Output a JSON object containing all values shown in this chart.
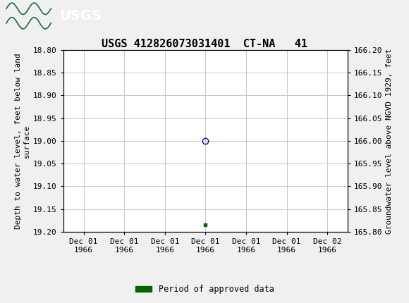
{
  "title": "USGS 412826073031401  CT-NA   41",
  "xlabel_ticks": [
    "Dec 01\n1966",
    "Dec 01\n1966",
    "Dec 01\n1966",
    "Dec 01\n1966",
    "Dec 01\n1966",
    "Dec 01\n1966",
    "Dec 02\n1966"
  ],
  "ylabel_left": "Depth to water level, feet below land\nsurface",
  "ylabel_right": "Groundwater level above NGVD 1929, feet",
  "ylim_left": [
    18.8,
    19.2
  ],
  "ylim_right": [
    165.8,
    166.2
  ],
  "yticks_left": [
    18.8,
    18.85,
    18.9,
    18.95,
    19.0,
    19.05,
    19.1,
    19.15,
    19.2
  ],
  "yticks_right": [
    165.8,
    165.85,
    165.9,
    165.95,
    166.0,
    166.05,
    166.1,
    166.15,
    166.2
  ],
  "data_point_x": 3,
  "data_point_y_circle": 19.0,
  "data_point_y_square": 19.185,
  "circle_color": "#0000bb",
  "square_color": "#006600",
  "grid_color": "#c8c8c8",
  "background_color": "#f0f0f0",
  "plot_bg_color": "#ffffff",
  "header_color": "#1a6b3a",
  "header_text_color": "#ffffff",
  "legend_label": "Period of approved data",
  "legend_color": "#006600",
  "font_family": "monospace",
  "title_fontsize": 11,
  "axis_label_fontsize": 8,
  "tick_fontsize": 8,
  "num_xticks": 7,
  "xtick_positions": [
    0,
    1,
    2,
    3,
    4,
    5,
    6
  ]
}
